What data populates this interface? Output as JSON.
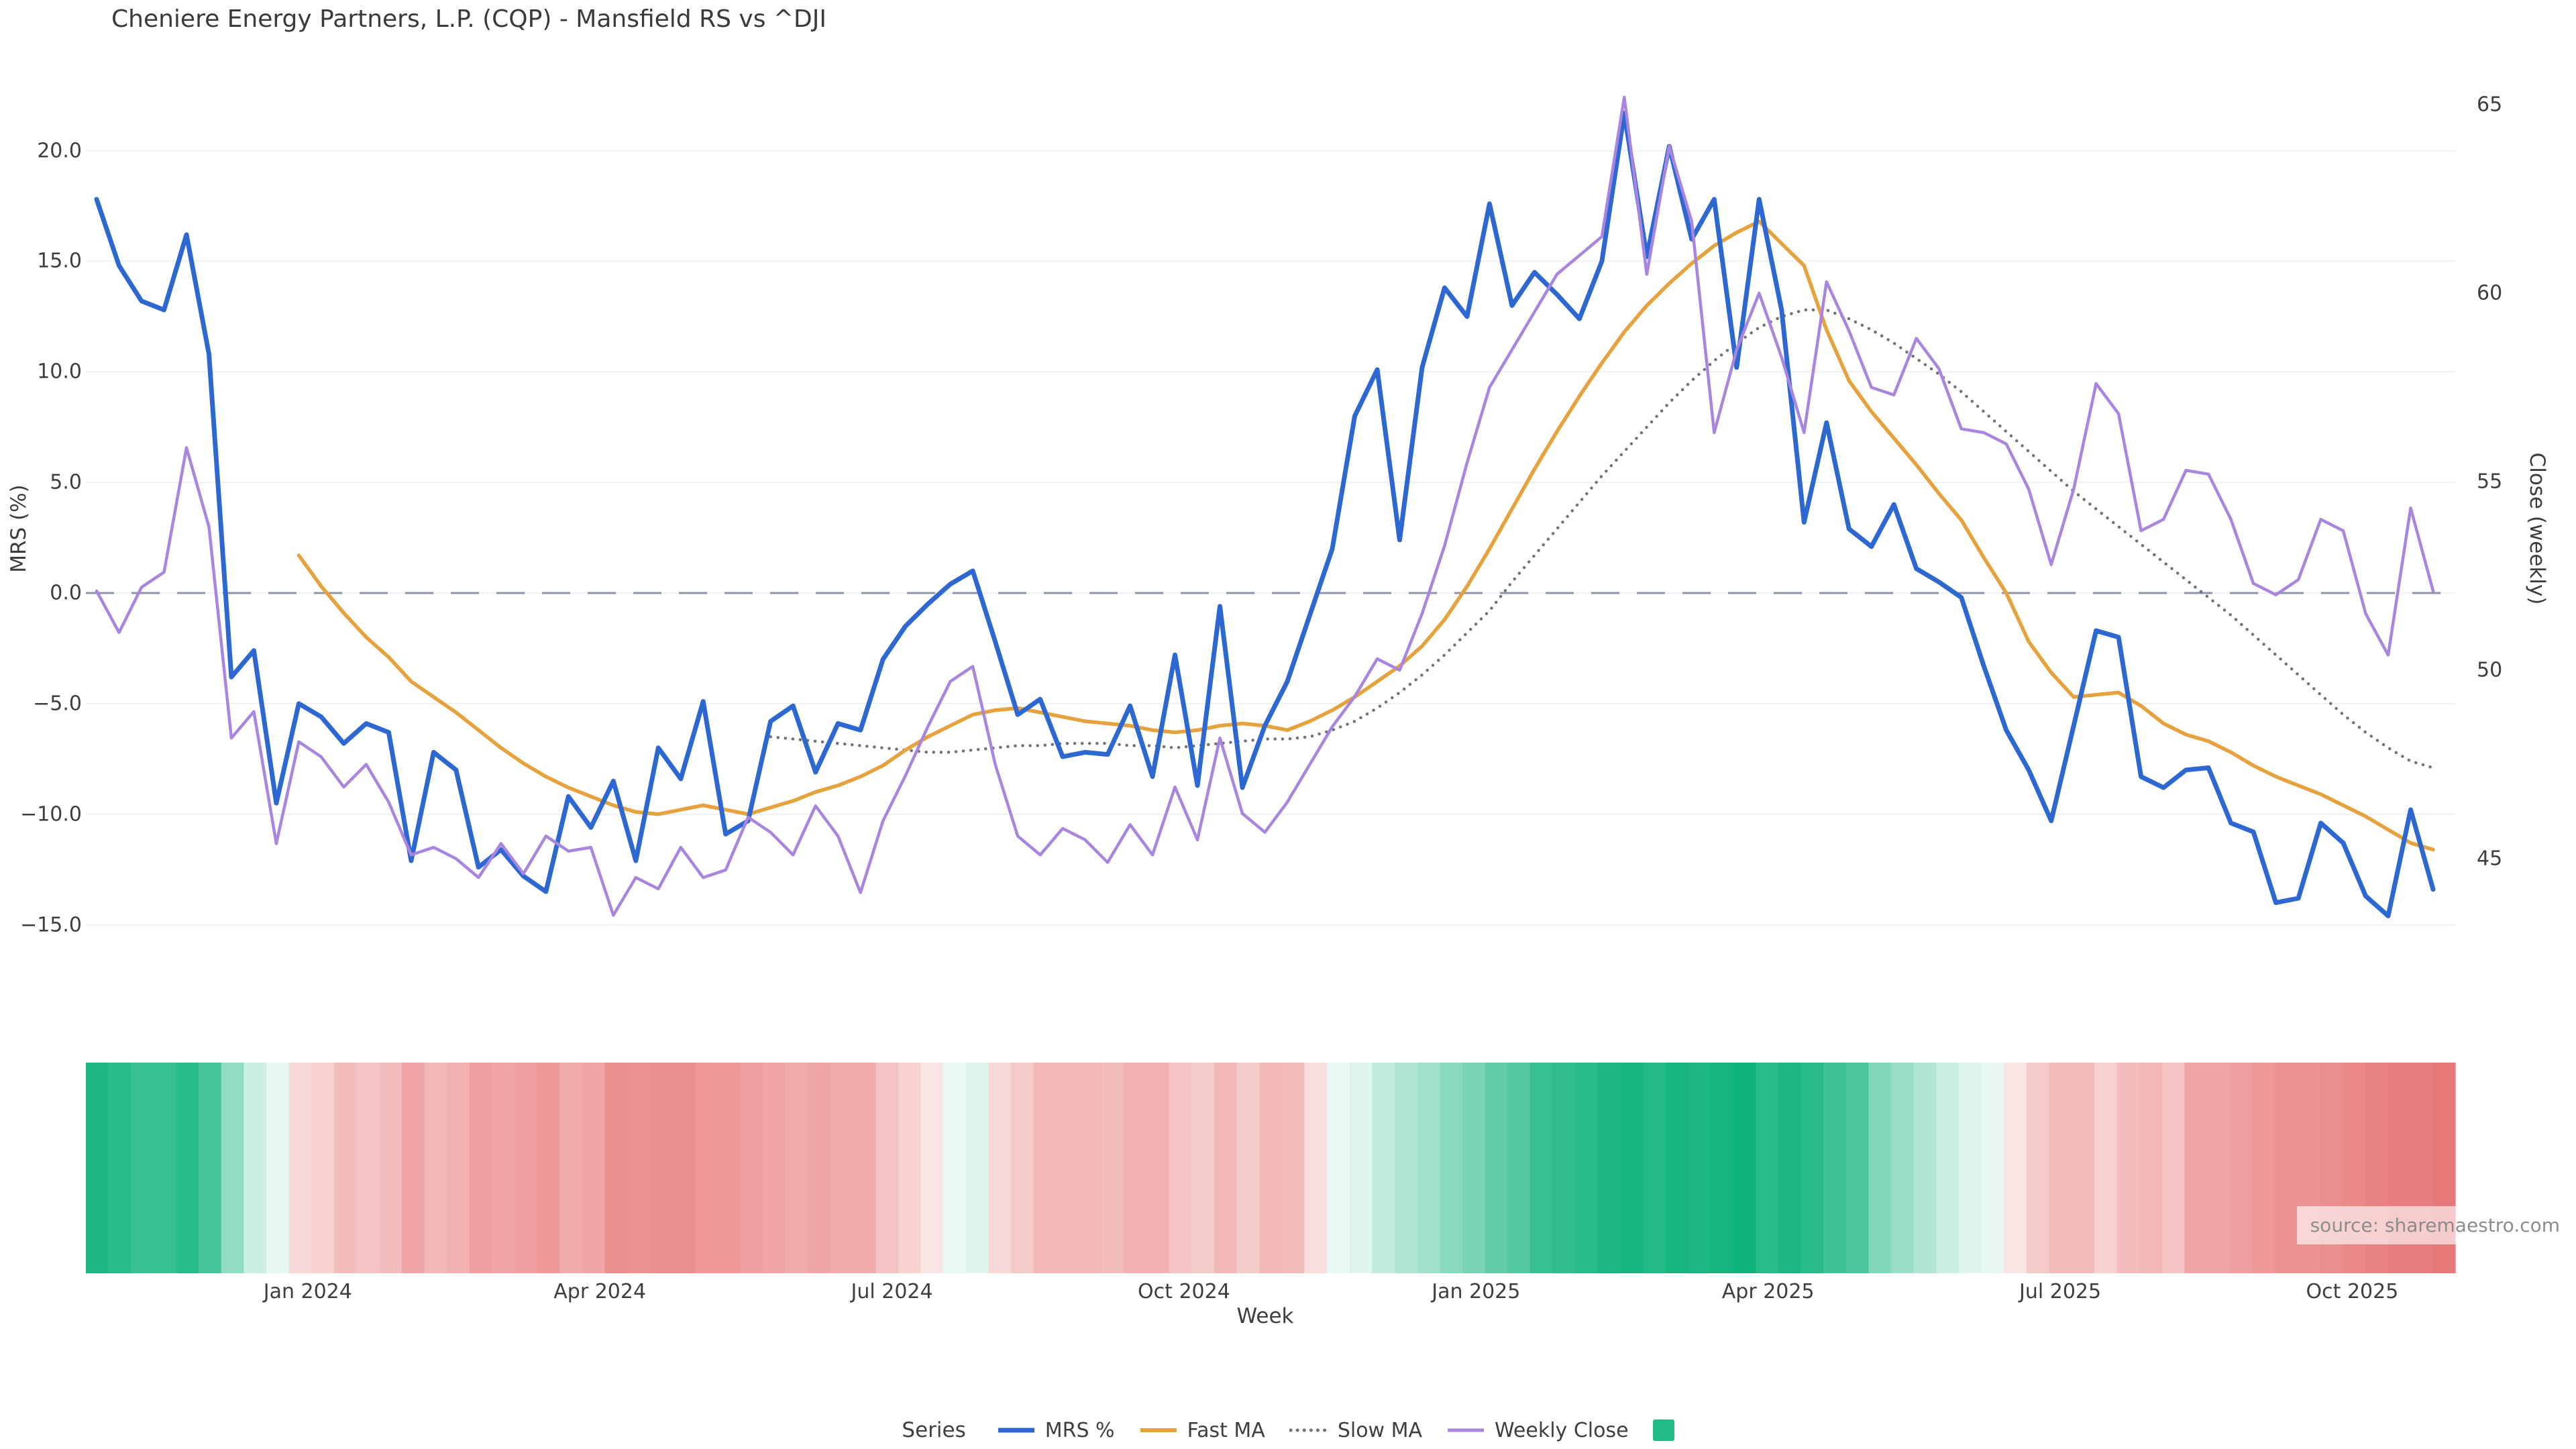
{
  "title": "Cheniere Energy Partners, L.P. (CQP) - Mansfield RS vs ^DJI",
  "axes": {
    "left_label": "MRS (%)",
    "right_label": "Close (weekly)",
    "x_label": "Week",
    "left_ticks": [
      {
        "label": "20.0",
        "value": 20
      },
      {
        "label": "15.0",
        "value": 15
      },
      {
        "label": "10.0",
        "value": 10
      },
      {
        "label": "5.0",
        "value": 5
      },
      {
        "label": "0.0",
        "value": 0
      },
      {
        "label": "−5.0",
        "value": -5
      },
      {
        "label": "−10.0",
        "value": -10
      },
      {
        "label": "−15.0",
        "value": -15
      }
    ],
    "right_ticks": [
      {
        "label": "65",
        "value": 65
      },
      {
        "label": "60",
        "value": 60
      },
      {
        "label": "55",
        "value": 55
      },
      {
        "label": "50",
        "value": 50
      },
      {
        "label": "45",
        "value": 45
      }
    ],
    "x_ticks": [
      {
        "label": "Jan 2024",
        "week": 9.4
      },
      {
        "label": "Apr 2024",
        "week": 22.4
      },
      {
        "label": "Jul 2024",
        "week": 35.4
      },
      {
        "label": "Oct 2024",
        "week": 48.4
      },
      {
        "label": "Jan 2025",
        "week": 61.4
      },
      {
        "label": "Apr 2025",
        "week": 74.4
      },
      {
        "label": "Jul 2025",
        "week": 87.4
      },
      {
        "label": "Oct 2025",
        "week": 100.4
      }
    ]
  },
  "legend": {
    "title": "Series",
    "items": [
      {
        "label": "MRS %",
        "color": "#2d68d2",
        "style": "solid"
      },
      {
        "label": "Fast MA",
        "color": "#e6a23c",
        "style": "solid"
      },
      {
        "label": "Slow MA",
        "color": "#737373",
        "style": "dotted"
      },
      {
        "label": "Weekly Close",
        "color": "#a886e0",
        "style": "solid"
      }
    ],
    "heat_swatch_color": "#22ba88"
  },
  "source_note": "source: sharemaestro.com",
  "colors": {
    "grid": "#eef1f8",
    "zero_line": "#8d93a8",
    "heat_positive": "#0eb27d",
    "heat_negative": "#de4848",
    "text": "#3e3e3e"
  },
  "chart_data": {
    "type": "line",
    "title": "Cheniere Energy Partners, L.P. (CQP) - Mansfield RS vs ^DJI",
    "xlabel": "Week",
    "ylabel_left": "MRS (%)",
    "ylabel_right": "Close (weekly)",
    "x_start_date": "2023-10-27",
    "x_frequency": "weekly",
    "n_points": 105,
    "left_axis_ticks": [
      20,
      15,
      10,
      5,
      0,
      -5,
      -10,
      -15
    ],
    "right_axis_ticks": [
      65,
      60,
      55,
      50,
      45
    ],
    "zero_reference_line": 0,
    "grid": "horizontal-only",
    "legend_position": "bottom-center",
    "series": [
      {
        "name": "MRS %",
        "axis": "left",
        "color": "#2d68d2",
        "style": "solid",
        "width": 7,
        "values": [
          17.8,
          14.8,
          13.2,
          12.8,
          16.2,
          10.8,
          -3.8,
          -2.6,
          -9.5,
          -5.0,
          -5.6,
          -6.8,
          -5.9,
          -6.3,
          -12.1,
          -7.2,
          -8.0,
          -12.4,
          -11.6,
          -12.8,
          -13.5,
          -9.2,
          -10.6,
          -8.5,
          -12.1,
          -7.0,
          -8.4,
          -4.9,
          -10.9,
          -10.3,
          -5.8,
          -5.1,
          -8.1,
          -5.9,
          -6.2,
          -3.0,
          -1.5,
          -0.5,
          0.4,
          1.0,
          -2.2,
          -5.5,
          -4.8,
          -7.4,
          -7.2,
          -7.3,
          -5.1,
          -8.3,
          -2.8,
          -8.7,
          -0.6,
          -8.8,
          -6.0,
          -4.0,
          -1.0,
          2.0,
          8.0,
          10.1,
          2.4,
          10.2,
          13.8,
          12.5,
          17.6,
          13.0,
          14.5,
          13.5,
          12.4,
          15.0,
          21.7,
          15.2,
          20.2,
          16.0,
          17.8,
          10.2,
          17.8,
          12.8,
          3.2,
          7.7,
          2.9,
          2.1,
          4.0,
          1.1,
          0.5,
          -0.2,
          -3.3,
          -6.2,
          -8.0,
          -10.3,
          -6.0,
          -1.7,
          -2.0,
          -8.3,
          -8.8,
          -8.0,
          -7.9,
          -10.4,
          -10.8,
          -14.0,
          -13.8,
          -10.4,
          -11.3,
          -13.7,
          -14.6,
          -9.8,
          -13.4
        ]
      },
      {
        "name": "Fast MA",
        "axis": "left",
        "color": "#e6a23c",
        "style": "solid",
        "width": 5.5,
        "values": [
          null,
          null,
          null,
          null,
          null,
          null,
          null,
          null,
          null,
          1.7,
          0.3,
          -0.9,
          -2.0,
          -2.9,
          -4.0,
          -4.7,
          -5.4,
          -6.2,
          -7.0,
          -7.7,
          -8.3,
          -8.8,
          -9.2,
          -9.6,
          -9.9,
          -10.0,
          -9.8,
          -9.6,
          -9.8,
          -10.0,
          -9.7,
          -9.4,
          -9.0,
          -8.7,
          -8.3,
          -7.8,
          -7.1,
          -6.5,
          -6.0,
          -5.5,
          -5.3,
          -5.2,
          -5.4,
          -5.6,
          -5.8,
          -5.9,
          -6.0,
          -6.2,
          -6.3,
          -6.2,
          -6.0,
          -5.9,
          -6.0,
          -6.2,
          -5.8,
          -5.3,
          -4.7,
          -4.0,
          -3.3,
          -2.4,
          -1.2,
          0.3,
          2.0,
          3.8,
          5.6,
          7.3,
          8.9,
          10.4,
          11.8,
          13.0,
          14.0,
          14.9,
          15.7,
          16.3,
          16.8,
          15.8,
          14.8,
          11.9,
          9.6,
          8.2,
          7.0,
          5.8,
          4.5,
          3.3,
          1.6,
          0.0,
          -2.2,
          -3.6,
          -4.7,
          -4.6,
          -4.5,
          -5.1,
          -5.9,
          -6.4,
          -6.7,
          -7.2,
          -7.8,
          -8.3,
          -8.7,
          -9.1,
          -9.6,
          -10.1,
          -10.7,
          -11.3,
          -11.6
        ]
      },
      {
        "name": "Slow MA",
        "axis": "left",
        "color": "#737373",
        "style": "dotted",
        "width": 4.5,
        "values": [
          null,
          null,
          null,
          null,
          null,
          null,
          null,
          null,
          null,
          null,
          null,
          null,
          null,
          null,
          null,
          null,
          null,
          null,
          null,
          null,
          null,
          null,
          null,
          null,
          null,
          null,
          null,
          null,
          null,
          null,
          -6.5,
          -6.6,
          -6.7,
          -6.8,
          -6.9,
          -7.0,
          -7.1,
          -7.2,
          -7.2,
          -7.1,
          -7.0,
          -6.9,
          -6.9,
          -6.8,
          -6.8,
          -6.8,
          -6.9,
          -6.9,
          -7.0,
          -6.9,
          -6.8,
          -6.7,
          -6.6,
          -6.6,
          -6.5,
          -6.2,
          -5.8,
          -5.2,
          -4.5,
          -3.7,
          -2.8,
          -1.8,
          -0.8,
          0.5,
          1.7,
          2.9,
          4.1,
          5.3,
          6.4,
          7.5,
          8.6,
          9.6,
          10.5,
          11.3,
          12.0,
          12.5,
          12.8,
          12.8,
          12.4,
          11.9,
          11.3,
          10.6,
          9.9,
          9.1,
          8.2,
          7.3,
          6.4,
          5.5,
          4.6,
          3.8,
          3.0,
          2.2,
          1.4,
          0.6,
          -0.2,
          -1.0,
          -1.9,
          -2.8,
          -3.7,
          -4.6,
          -5.5,
          -6.3,
          -7.0,
          -7.6,
          -7.9
        ]
      },
      {
        "name": "Weekly Close",
        "axis": "right",
        "color": "#a886e0",
        "style": "solid",
        "width": 4.5,
        "values": [
          52.1,
          51.0,
          52.2,
          52.6,
          55.9,
          53.8,
          48.2,
          48.9,
          45.4,
          48.1,
          47.7,
          46.9,
          47.5,
          46.5,
          45.1,
          45.3,
          45.0,
          44.5,
          45.4,
          44.6,
          45.6,
          45.2,
          45.3,
          43.5,
          44.5,
          44.2,
          45.3,
          44.5,
          44.7,
          46.1,
          45.7,
          45.1,
          46.4,
          45.6,
          44.1,
          46.0,
          47.2,
          48.5,
          49.7,
          50.1,
          47.5,
          45.6,
          45.1,
          45.8,
          45.5,
          44.9,
          45.9,
          45.1,
          46.9,
          45.5,
          48.2,
          46.2,
          45.7,
          46.5,
          47.5,
          48.5,
          49.3,
          50.3,
          50.0,
          51.5,
          53.3,
          55.5,
          57.5,
          58.5,
          59.5,
          60.5,
          61.0,
          61.5,
          65.2,
          60.5,
          63.9,
          61.9,
          56.3,
          58.5,
          60.0,
          58.3,
          56.3,
          60.3,
          59.0,
          57.5,
          57.3,
          58.8,
          58.0,
          56.4,
          56.3,
          56.0,
          54.8,
          52.8,
          54.8,
          57.6,
          56.8,
          53.7,
          54.0,
          55.3,
          55.2,
          54.0,
          52.3,
          52.0,
          52.4,
          54.0,
          53.7,
          51.5,
          50.4,
          54.3,
          52.1
        ]
      }
    ],
    "heatmap": {
      "description": "weekly strength strip below chart, green = positive, red = negative",
      "value_scale": 15,
      "positive_color": "#0eb27d",
      "negative_color": "#de4848",
      "values": [
        14,
        13,
        12,
        12,
        13,
        11,
        6,
        2.5,
        1,
        -2.5,
        -3,
        -4.5,
        -4,
        -4.5,
        -6.5,
        -5,
        -5.5,
        -7,
        -6.5,
        -7,
        -7.5,
        -6,
        -6.5,
        -8.5,
        -8,
        -8.5,
        -8.5,
        -7.5,
        -7.5,
        -7,
        -6.5,
        -6,
        -6.5,
        -6,
        -6,
        -4,
        -3,
        -1.5,
        0.8,
        1.5,
        -2.5,
        -3.5,
        -5,
        -5,
        -5,
        -4.5,
        -5.5,
        -5.5,
        -4,
        -3.5,
        -5,
        -3.5,
        -5,
        -4.5,
        -2,
        0.8,
        1.5,
        3,
        4,
        5,
        6.5,
        7.5,
        9,
        10,
        12,
        12.5,
        13,
        14,
        14.5,
        13.5,
        14.5,
        14,
        14.5,
        15,
        13,
        14,
        13,
        11.5,
        10.5,
        7,
        5.5,
        4,
        2.5,
        1.5,
        1,
        -1.5,
        -3.5,
        -4.5,
        -4.5,
        -3,
        -4.5,
        -5,
        -4,
        -6.5,
        -6.5,
        -7,
        -7.5,
        -8,
        -8,
        -8.5,
        -9,
        -9.5,
        -10,
        -10,
        -10.5
      ]
    }
  }
}
